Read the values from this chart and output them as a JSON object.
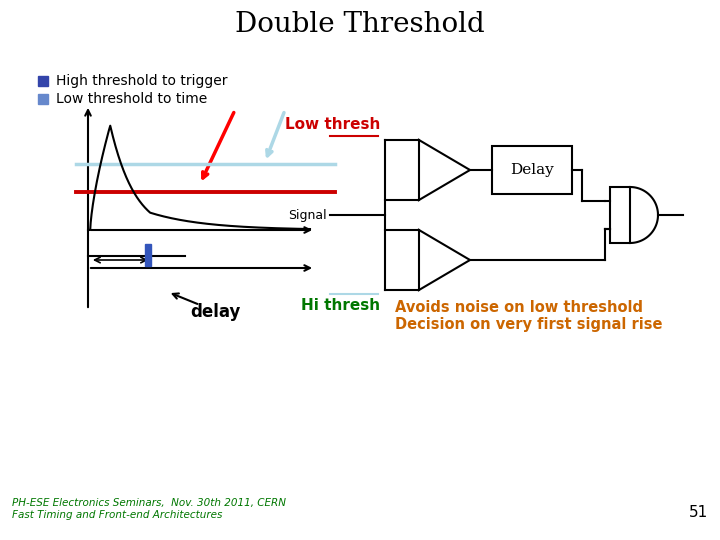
{
  "title": "Double Threshold",
  "title_fontsize": 20,
  "bg_color": "#ffffff",
  "bullet1": "High threshold to trigger",
  "bullet2": "Low threshold to time",
  "bullet_color1": "#3344aa",
  "bullet_color2": "#6688cc",
  "low_thresh_label": "Low thresh",
  "hi_thresh_label": "Hi thresh",
  "signal_label": "Signal",
  "delay_label": "Delay",
  "delay_text": "delay",
  "avoids_text": "Avoids noise on low threshold\nDecision on very first signal rise",
  "footer1": "PH-ESE Electronics Seminars,  Nov. 30th 2011, CERN",
  "footer2": "Fast Timing and Front-end Architectures",
  "page_num": "51",
  "red_color": "#cc0000",
  "green_color": "#007700",
  "orange_color": "#cc6600",
  "light_blue": "#add8e6",
  "low_thresh_line_color": "#add8e6",
  "hi_thresh_line_color": "#cc0000"
}
